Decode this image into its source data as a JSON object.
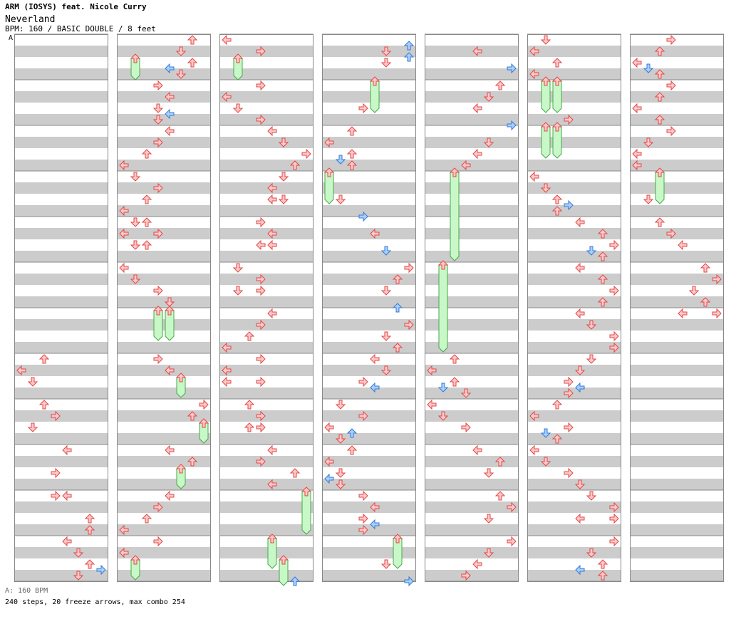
{
  "header": {
    "title": "ARM (IOSYS) feat. Nicole Curry",
    "song": "Neverland",
    "info": "BPM: 160 / BASIC DOUBLE / 8 feet",
    "bpm_marker": "A"
  },
  "footer": {
    "bpm_legend": "A: 160 BPM",
    "stats": "240 steps, 20 freeze arrows, max combo 254"
  },
  "colors": {
    "stripe_dark": "#cccccc",
    "stripe_light": "#ffffff",
    "border": "#888888",
    "arrow_red_fill": "#ffc8c8",
    "arrow_red_stroke": "#e04848",
    "arrow_blue_fill": "#a8d0ff",
    "arrow_blue_stroke": "#3878d0",
    "freeze_fill": "#c8f8c8",
    "freeze_stroke": "#48a848"
  }
}
